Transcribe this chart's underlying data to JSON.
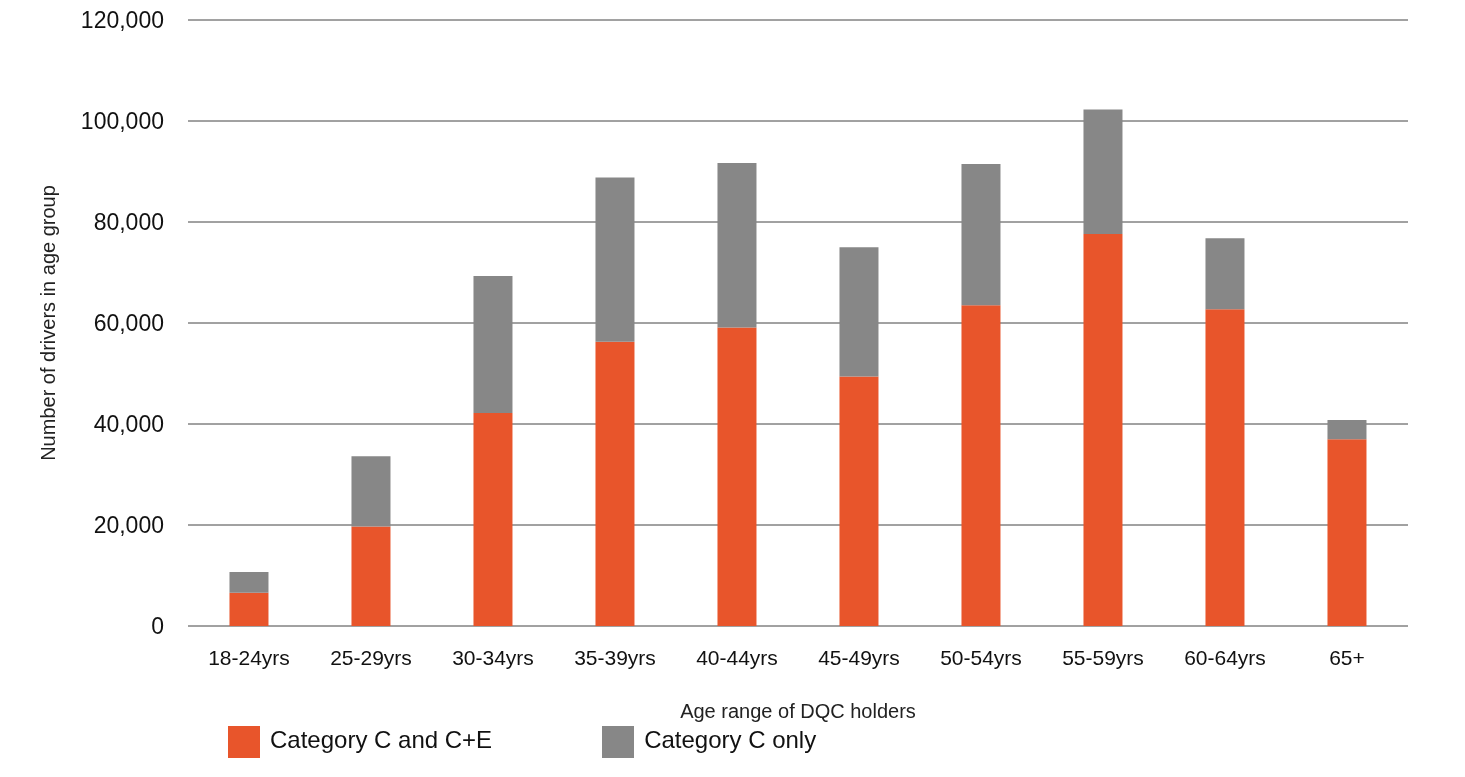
{
  "chart_data": {
    "type": "bar",
    "stacked": true,
    "xlabel": "Age range of DQC holders",
    "ylabel": "Number of drivers in age group",
    "categories": [
      "18-24yrs",
      "25-29yrs",
      "30-34yrs",
      "35-39yrs",
      "40-44yrs",
      "45-49yrs",
      "50-54yrs",
      "55-59yrs",
      "60-64yrs",
      "65+"
    ],
    "series": [
      {
        "name": "Category C and C+E",
        "color": "#e8552b",
        "values": [
          6600,
          19700,
          42200,
          56300,
          59100,
          49400,
          63500,
          77600,
          62700,
          37000
        ]
      },
      {
        "name": "Category C only",
        "color": "#878787",
        "values": [
          4100,
          13900,
          27100,
          32500,
          32600,
          25600,
          28000,
          24700,
          14100,
          3800
        ]
      }
    ],
    "ylim": [
      0,
      120000
    ],
    "yticks": [
      0,
      {
        "value": 20000,
        "label": "20,000"
      },
      {
        "value": 40000,
        "label": "40,000"
      },
      {
        "value": 60000,
        "label": "60,000"
      },
      {
        "value": 80000,
        "label": "80,000"
      },
      {
        "value": 100000,
        "label": "100,000"
      },
      {
        "value": 120000,
        "label": "120,000"
      }
    ],
    "grid": "y",
    "legend": "bottom left"
  }
}
